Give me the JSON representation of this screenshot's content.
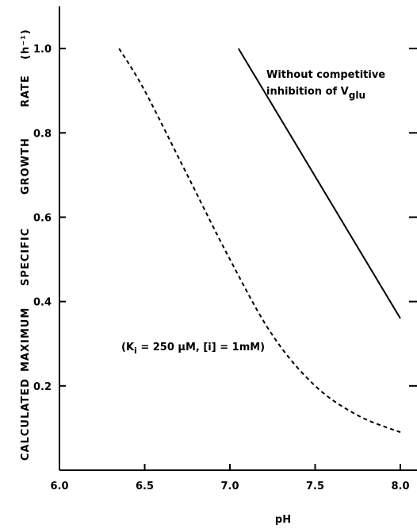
{
  "chart_data": {
    "type": "line",
    "title": "",
    "xlabel": "pH",
    "ylabel_words": [
      "CALCULATED",
      "MAXIMUM",
      "SPECIFIC",
      "GROWTH",
      "RATE"
    ],
    "ylabel_unit": "(h⁻¹)",
    "xlim": [
      6.0,
      8.0
    ],
    "ylim": [
      0.0,
      1.1
    ],
    "x_ticks": [
      {
        "value": 6.0,
        "label": "6.0"
      },
      {
        "value": 6.5,
        "label": "6.5"
      },
      {
        "value": 7.0,
        "label": "7.0"
      },
      {
        "value": 7.5,
        "label": "7.5"
      },
      {
        "value": 8.0,
        "label": "8.0"
      }
    ],
    "y_ticks": [
      {
        "value": 0.2,
        "label": "0.2"
      },
      {
        "value": 0.4,
        "label": "0.4"
      },
      {
        "value": 0.6,
        "label": "0.6"
      },
      {
        "value": 0.8,
        "label": "0.8"
      },
      {
        "value": 1.0,
        "label": "1.0"
      }
    ],
    "grid": false,
    "series": [
      {
        "style": "solid",
        "color": "#000000",
        "x": [
          7.05,
          8.0
        ],
        "y": [
          1.0,
          0.36
        ],
        "label_lines": [
          "Without competitive",
          "inhibition of V"
        ],
        "label_subscript": "glu"
      },
      {
        "style": "dashed",
        "color": "#000000",
        "x": [
          6.35,
          6.5,
          6.75,
          7.0,
          7.25,
          7.5,
          7.75,
          8.0
        ],
        "y": [
          1.0,
          0.9,
          0.7,
          0.5,
          0.32,
          0.2,
          0.13,
          0.09
        ],
        "label_prefix": "(K",
        "label_subscript": "i",
        "label_suffix": " = 250 µM,  [i] = 1mM)"
      }
    ]
  }
}
